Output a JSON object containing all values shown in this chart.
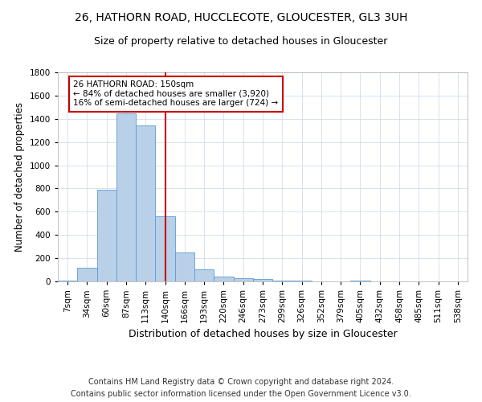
{
  "title1": "26, HATHORN ROAD, HUCCLECOTE, GLOUCESTER, GL3 3UH",
  "title2": "Size of property relative to detached houses in Gloucester",
  "xlabel": "Distribution of detached houses by size in Gloucester",
  "ylabel": "Number of detached properties",
  "categories": [
    "7sqm",
    "34sqm",
    "60sqm",
    "87sqm",
    "113sqm",
    "140sqm",
    "166sqm",
    "193sqm",
    "220sqm",
    "246sqm",
    "273sqm",
    "299sqm",
    "326sqm",
    "352sqm",
    "379sqm",
    "405sqm",
    "432sqm",
    "458sqm",
    "485sqm",
    "511sqm",
    "538sqm"
  ],
  "values": [
    10,
    120,
    790,
    1450,
    1340,
    560,
    250,
    105,
    40,
    30,
    20,
    10,
    5,
    0,
    0,
    10,
    0,
    0,
    0,
    0,
    0
  ],
  "bar_color": "#b8d0e8",
  "bar_edgecolor": "#5b9bd5",
  "vline_color": "#cc0000",
  "vline_pos": 5.0,
  "annotation_text": "26 HATHORN ROAD: 150sqm\n← 84% of detached houses are smaller (3,920)\n16% of semi-detached houses are larger (724) →",
  "annotation_box_edgecolor": "#cc0000",
  "annotation_box_facecolor": "#ffffff",
  "footer1": "Contains HM Land Registry data © Crown copyright and database right 2024.",
  "footer2": "Contains public sector information licensed under the Open Government Licence v3.0.",
  "ylim": [
    0,
    1800
  ],
  "yticks": [
    0,
    200,
    400,
    600,
    800,
    1000,
    1200,
    1400,
    1600,
    1800
  ],
  "title1_fontsize": 10,
  "title2_fontsize": 9,
  "xlabel_fontsize": 9,
  "ylabel_fontsize": 8.5,
  "tick_fontsize": 7.5,
  "footer_fontsize": 7,
  "background_color": "#ffffff",
  "grid_color": "#c8d8ea"
}
